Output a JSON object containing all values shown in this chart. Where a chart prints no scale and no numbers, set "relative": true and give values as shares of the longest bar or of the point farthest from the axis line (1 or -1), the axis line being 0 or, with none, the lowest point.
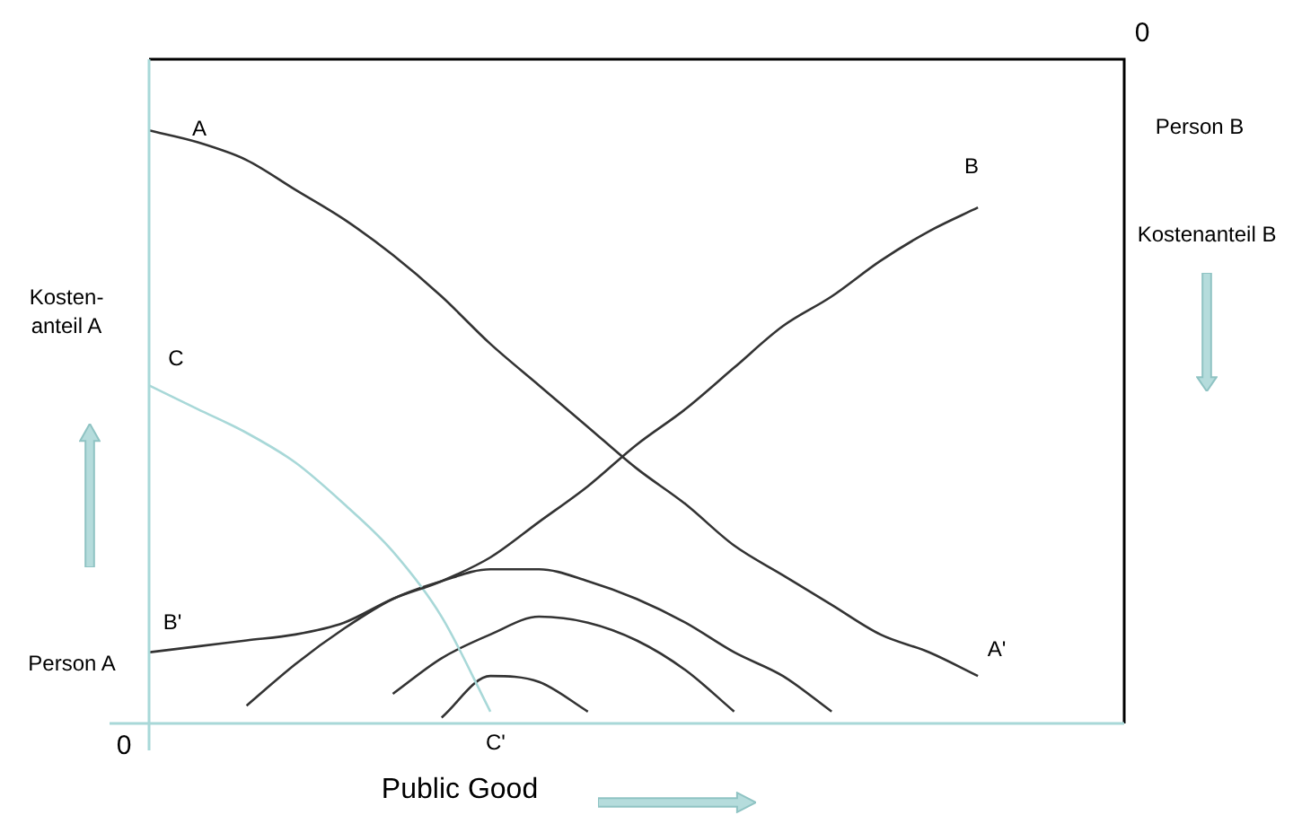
{
  "chart_data": {
    "type": "line",
    "relative": true,
    "xlabel": "Public Good",
    "ylabel": "Kosten-anteil A",
    "y2label": "Kostenanteil B",
    "marker": "none",
    "line_style": "solid",
    "categories": [
      null,
      null,
      null,
      null,
      null,
      null,
      null,
      null,
      null,
      null,
      null,
      null,
      null,
      null,
      null,
      null,
      null,
      null,
      null,
      null,
      null
    ],
    "series": [
      {
        "color": "#333333",
        "values": [
          1.0,
          0.98,
          0.95,
          0.9,
          0.85,
          0.79,
          0.72,
          0.64,
          0.57,
          0.5,
          0.43,
          0.37,
          0.3,
          0.25,
          0.2,
          0.15,
          0.12,
          0.08,
          null,
          null,
          null
        ]
      },
      {
        "color": "#333333",
        "values": [
          0.12,
          0.13,
          0.14,
          0.15,
          0.17,
          0.21,
          0.24,
          0.28,
          0.34,
          0.4,
          0.47,
          0.53,
          0.6,
          0.67,
          0.72,
          0.78,
          0.83,
          0.87,
          null,
          null,
          null
        ]
      },
      {
        "color": "#a8d8d8",
        "values": [
          0.57,
          0.53,
          0.49,
          0.44,
          0.37,
          0.29,
          0.18,
          0.02,
          null,
          null,
          null,
          null,
          null,
          null,
          null,
          null,
          null,
          null,
          null,
          null,
          null
        ]
      },
      {
        "color": "#333333",
        "values": [
          null,
          null,
          0.03,
          0.1,
          0.16,
          0.21,
          0.24,
          0.26,
          0.26,
          0.24,
          0.21,
          0.17,
          0.12,
          0.08,
          0.02,
          null,
          null,
          null,
          null,
          null,
          null
        ]
      },
      {
        "color": "#333333",
        "values": [
          null,
          null,
          null,
          null,
          null,
          0.05,
          0.11,
          0.15,
          0.18,
          0.17,
          0.14,
          0.09,
          0.02,
          null,
          null,
          null,
          null,
          null,
          null,
          null,
          null
        ]
      },
      {
        "color": "#333333",
        "values": [
          null,
          null,
          null,
          null,
          null,
          null,
          0.01,
          0.08,
          0.07,
          0.02,
          null,
          null,
          null,
          null,
          null,
          null,
          null,
          null,
          null,
          null,
          null
        ]
      }
    ],
    "annotations": [
      "A",
      "A'",
      "B",
      "B'",
      "C",
      "C'",
      "0",
      "0",
      "Person A",
      "Person B"
    ]
  }
}
